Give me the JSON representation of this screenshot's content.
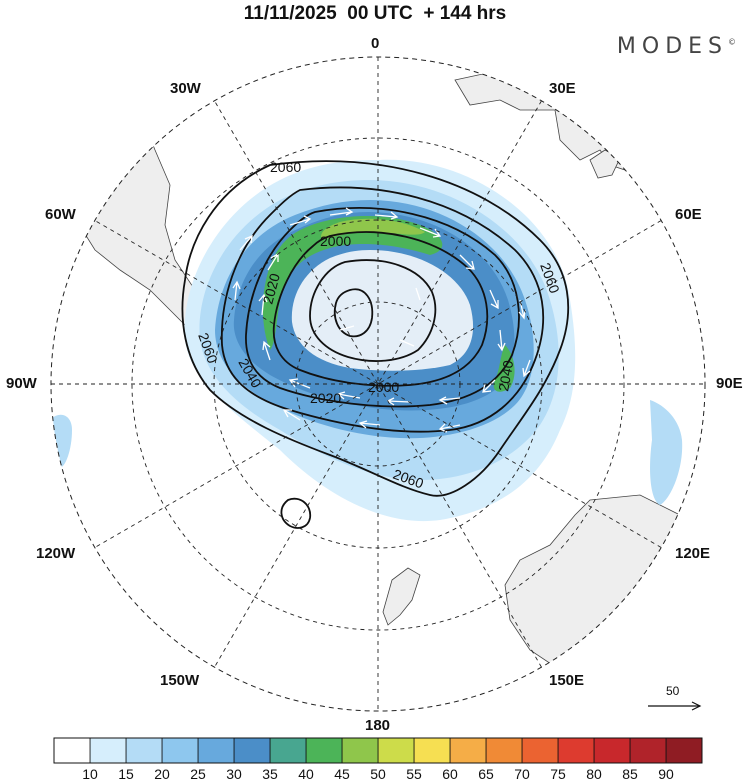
{
  "title": "11/11/2025  00 UTC  + 144 hrs",
  "brand": "MODES",
  "brand_mark": "©",
  "longitude_labels": {
    "n": "0",
    "e30": "30E",
    "e60": "60E",
    "e90": "90E",
    "e120": "120E",
    "e150": "150E",
    "s": "180",
    "w150": "150W",
    "w120": "120W",
    "w90": "90W",
    "w60": "60W",
    "w30": "30W"
  },
  "contour_labels": [
    "2060",
    "2000",
    "2020",
    "2060",
    "2060",
    "2040",
    "2000",
    "2020",
    "2040",
    "2060"
  ],
  "reference_vector": "50",
  "colorbar": {
    "ticks": [
      "10",
      "15",
      "20",
      "25",
      "30",
      "35",
      "40",
      "45",
      "50",
      "55",
      "60",
      "65",
      "70",
      "75",
      "80",
      "85",
      "90"
    ],
    "colors": [
      "#ffffff",
      "#d6eefc",
      "#b4dcf6",
      "#8ec7ee",
      "#67a9dd",
      "#4b8ec8",
      "#48a690",
      "#4cb458",
      "#8fc64b",
      "#cddc4a",
      "#f6df52",
      "#f5ad47",
      "#f08a36",
      "#eb6331",
      "#dd3b2f",
      "#c8282c",
      "#b0232a",
      "#8f1c23"
    ]
  }
}
